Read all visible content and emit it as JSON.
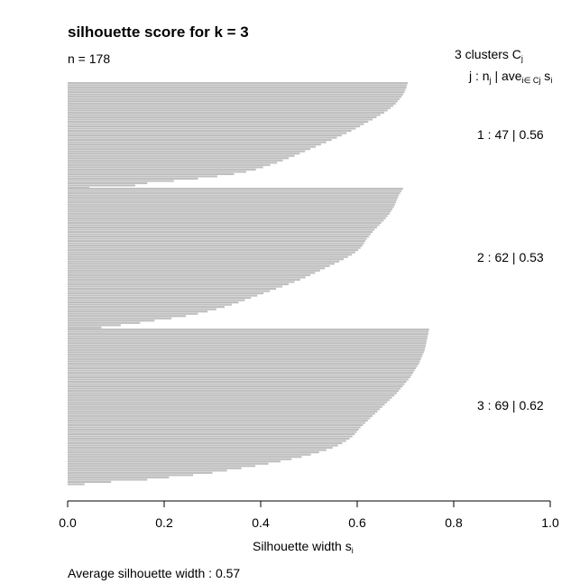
{
  "chart_data": {
    "type": "bar",
    "orientation": "horizontal",
    "title": "silhouette score for k =  3",
    "n_label": "n = 178",
    "legend_header_line1": "3  clusters  C",
    "legend_header_line1_sub": "j",
    "legend_header_line2": {
      "j": "j :  n",
      "j_sub": "j",
      "sep": " | ave",
      "ave_sub": "i∈ Cj",
      "s": "  s",
      "s_sub": "i"
    },
    "xlabel": "Silhouette width s",
    "xlabel_sub": "i",
    "xlim": [
      0,
      1
    ],
    "x_ticks": [
      "0.0",
      "0.2",
      "0.4",
      "0.6",
      "0.8",
      "1.0"
    ],
    "average_label": "Average silhouette width :  0.57",
    "average_silhouette": 0.57,
    "bar_color": "#bfbfbf",
    "clusters": [
      {
        "label": "1 :   47  |  0.56",
        "n": 47,
        "avg": 0.56,
        "values": [
          0.705,
          0.703,
          0.702,
          0.7,
          0.698,
          0.695,
          0.692,
          0.688,
          0.684,
          0.68,
          0.675,
          0.669,
          0.663,
          0.656,
          0.648,
          0.64,
          0.632,
          0.623,
          0.614,
          0.606,
          0.597,
          0.588,
          0.578,
          0.568,
          0.558,
          0.547,
          0.536,
          0.525,
          0.514,
          0.503,
          0.492,
          0.481,
          0.47,
          0.458,
          0.446,
          0.434,
          0.42,
          0.405,
          0.39,
          0.37,
          0.345,
          0.31,
          0.27,
          0.22,
          0.165,
          0.14,
          0.045
        ]
      },
      {
        "label": "2 :   62  |  0.53",
        "n": 62,
        "avg": 0.53,
        "values": [
          0.695,
          0.692,
          0.689,
          0.686,
          0.684,
          0.682,
          0.68,
          0.678,
          0.676,
          0.673,
          0.67,
          0.667,
          0.663,
          0.659,
          0.655,
          0.65,
          0.646,
          0.641,
          0.636,
          0.632,
          0.628,
          0.624,
          0.62,
          0.617,
          0.614,
          0.611,
          0.607,
          0.602,
          0.596,
          0.589,
          0.581,
          0.572,
          0.563,
          0.553,
          0.543,
          0.533,
          0.523,
          0.513,
          0.503,
          0.493,
          0.482,
          0.47,
          0.458,
          0.445,
          0.432,
          0.419,
          0.406,
          0.393,
          0.38,
          0.367,
          0.354,
          0.34,
          0.325,
          0.308,
          0.29,
          0.27,
          0.245,
          0.215,
          0.18,
          0.15,
          0.11,
          0.07
        ]
      },
      {
        "label": "3 :   69  |  0.62",
        "n": 69,
        "avg": 0.62,
        "values": [
          0.749,
          0.748,
          0.747,
          0.746,
          0.745,
          0.744,
          0.743,
          0.742,
          0.741,
          0.74,
          0.738,
          0.736,
          0.734,
          0.732,
          0.73,
          0.728,
          0.725,
          0.722,
          0.719,
          0.716,
          0.713,
          0.71,
          0.706,
          0.702,
          0.698,
          0.694,
          0.69,
          0.686,
          0.682,
          0.677,
          0.672,
          0.667,
          0.662,
          0.657,
          0.652,
          0.647,
          0.642,
          0.637,
          0.632,
          0.627,
          0.622,
          0.617,
          0.612,
          0.607,
          0.603,
          0.599,
          0.595,
          0.59,
          0.584,
          0.577,
          0.569,
          0.56,
          0.549,
          0.536,
          0.521,
          0.504,
          0.485,
          0.464,
          0.441,
          0.416,
          0.389,
          0.36,
          0.33,
          0.3,
          0.26,
          0.21,
          0.165,
          0.09,
          0.035
        ]
      }
    ]
  }
}
